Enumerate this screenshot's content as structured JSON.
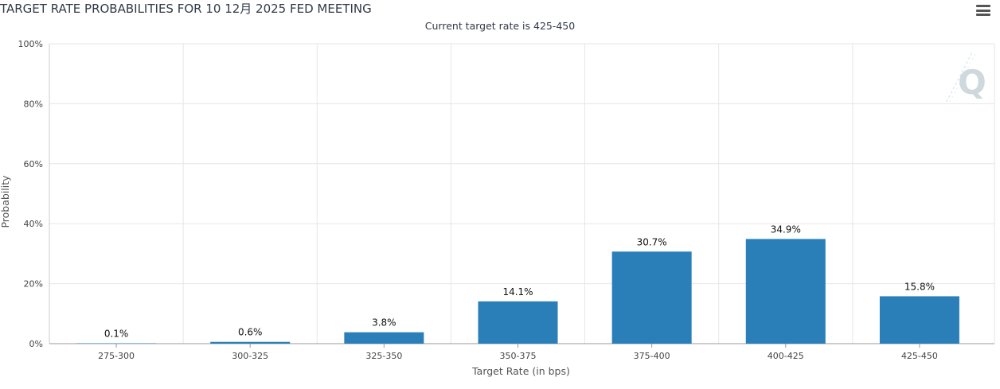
{
  "header": {
    "title": "TARGET RATE PROBABILITIES FOR 10 12月 2025 FED MEETING",
    "subtitle": "Current target rate is 425-450",
    "menu_icon": "hamburger-menu-icon",
    "watermark_letter": "Q"
  },
  "chart_data": {
    "type": "bar",
    "title": "TARGET RATE PROBABILITIES FOR 10 12月 2025 FED MEETING",
    "subtitle": "Current target rate is 425-450",
    "xlabel": "Target Rate (in bps)",
    "ylabel": "Probability",
    "categories": [
      "275-300",
      "300-325",
      "325-350",
      "350-375",
      "375-400",
      "400-425",
      "425-450"
    ],
    "values": [
      0.1,
      0.6,
      3.8,
      14.1,
      30.7,
      34.9,
      15.8
    ],
    "data_labels": [
      "0.1%",
      "0.6%",
      "3.8%",
      "14.1%",
      "30.7%",
      "34.9%",
      "15.8%"
    ],
    "yticks": [
      "0%",
      "20%",
      "40%",
      "60%",
      "80%",
      "100%"
    ],
    "ylim": [
      0,
      100
    ],
    "grid": true,
    "bar_color": "#2a7fb8"
  }
}
